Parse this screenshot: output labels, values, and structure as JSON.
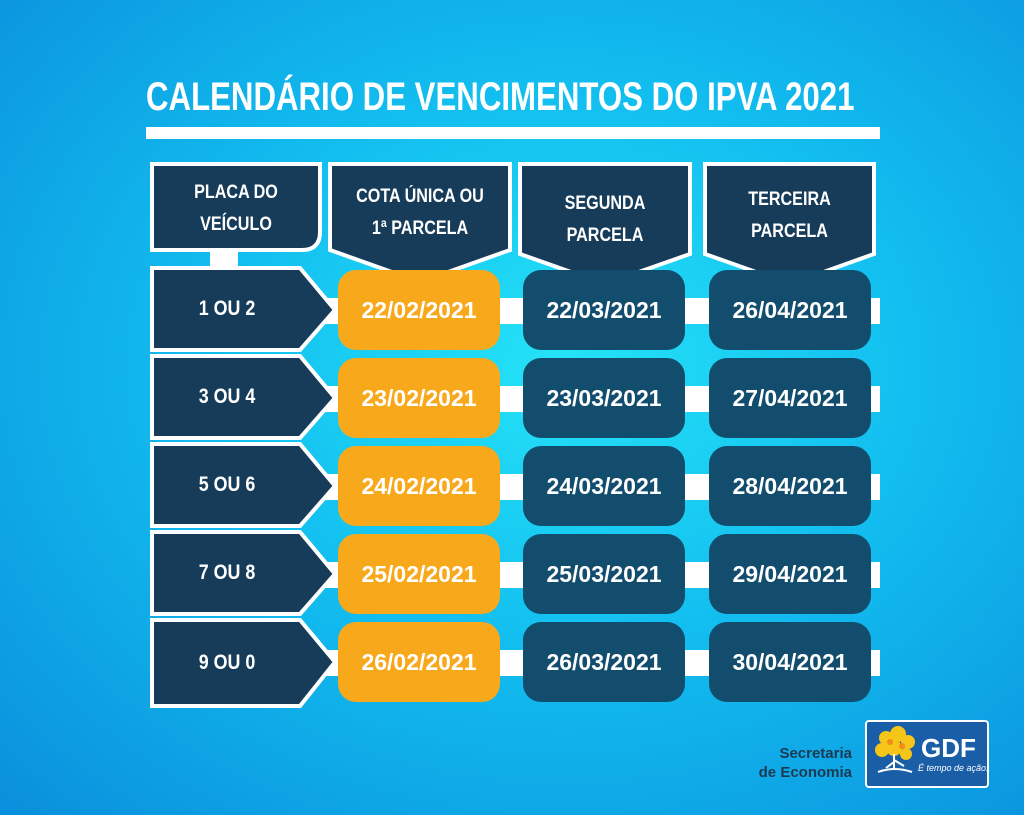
{
  "title": "CALENDÁRIO DE VENCIMENTOS DO IPVA 2021",
  "headers": {
    "plate": [
      "PLACA DO",
      "VEÍCULO"
    ],
    "first": [
      "COTA ÚNICA OU",
      "1ª PARCELA"
    ],
    "second": [
      "SEGUNDA",
      "PARCELA"
    ],
    "third": [
      "TERCEIRA",
      "PARCELA"
    ]
  },
  "rows": [
    {
      "plate": "1 OU 2",
      "d1": "22/02/2021",
      "d2": "22/03/2021",
      "d3": "26/04/2021"
    },
    {
      "plate": "3 OU 4",
      "d1": "23/02/2021",
      "d2": "23/03/2021",
      "d3": "27/04/2021"
    },
    {
      "plate": "5 OU 6",
      "d1": "24/02/2021",
      "d2": "24/03/2021",
      "d3": "28/04/2021"
    },
    {
      "plate": "7 OU 8",
      "d1": "25/02/2021",
      "d2": "25/03/2021",
      "d3": "29/04/2021"
    },
    {
      "plate": "9 OU 0",
      "d1": "26/02/2021",
      "d2": "26/03/2021",
      "d3": "30/04/2021"
    }
  ],
  "footer": {
    "secretaria_line1": "Secretaria",
    "secretaria_line2": "de Economia",
    "logo_text": "GDF",
    "logo_tagline": "É tempo de ação."
  },
  "colors": {
    "navy": "#173c5a",
    "cell_blue": "#124d6e",
    "yellow": "#f7a81b",
    "white": "#ffffff"
  },
  "icons": [
    "gdf-tree-logo-icon"
  ]
}
